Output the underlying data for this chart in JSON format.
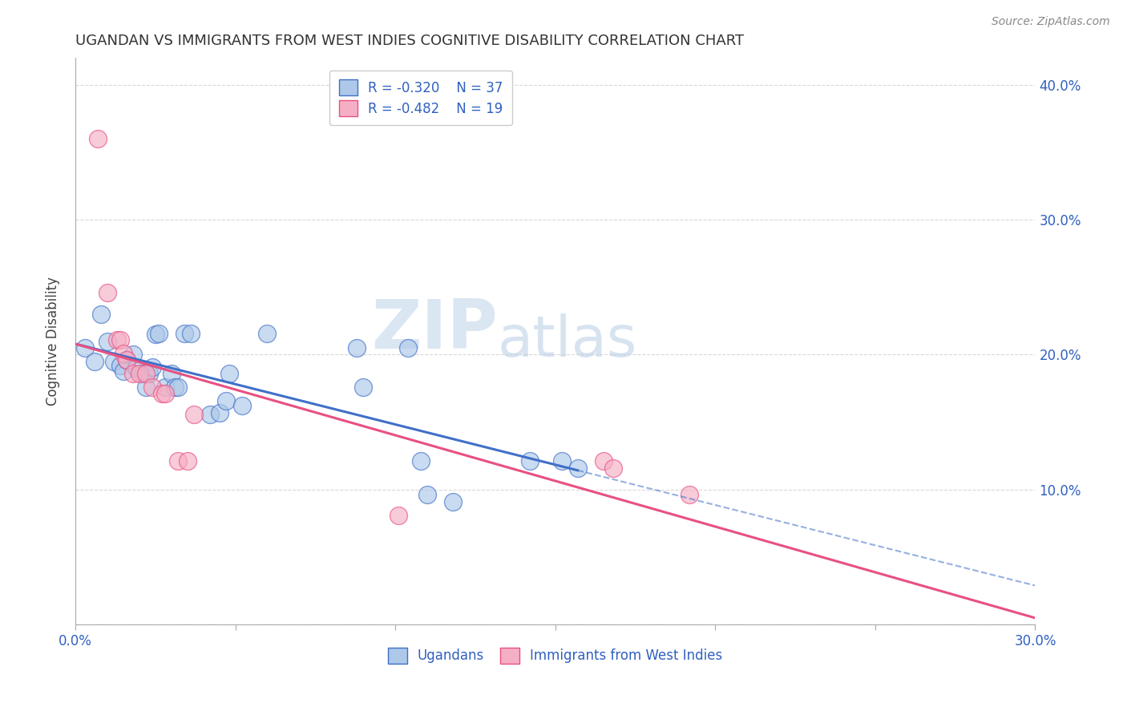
{
  "title": "UGANDAN VS IMMIGRANTS FROM WEST INDIES COGNITIVE DISABILITY CORRELATION CHART",
  "source": "Source: ZipAtlas.com",
  "ylabel": "Cognitive Disability",
  "xlim": [
    0.0,
    0.3
  ],
  "ylim": [
    0.0,
    0.42
  ],
  "x_ticks": [
    0.0,
    0.05,
    0.1,
    0.15,
    0.2,
    0.25,
    0.3
  ],
  "y_ticks_left": [
    0.0,
    0.1,
    0.2,
    0.3,
    0.4
  ],
  "y_ticks_right": [
    0.1,
    0.2,
    0.3,
    0.4
  ],
  "legend_r_blue": "R = -0.320",
  "legend_n_blue": "N = 37",
  "legend_r_pink": "R = -0.482",
  "legend_n_pink": "N = 19",
  "blue_color": "#adc8e8",
  "pink_color": "#f5afc5",
  "blue_line_color": "#4070c8",
  "pink_line_color": "#e85080",
  "blue_scatter": [
    [
      0.003,
      0.205
    ],
    [
      0.006,
      0.195
    ],
    [
      0.008,
      0.23
    ],
    [
      0.01,
      0.21
    ],
    [
      0.012,
      0.195
    ],
    [
      0.014,
      0.192
    ],
    [
      0.015,
      0.188
    ],
    [
      0.016,
      0.196
    ],
    [
      0.018,
      0.2
    ],
    [
      0.019,
      0.19
    ],
    [
      0.021,
      0.186
    ],
    [
      0.022,
      0.176
    ],
    [
      0.023,
      0.186
    ],
    [
      0.024,
      0.191
    ],
    [
      0.025,
      0.215
    ],
    [
      0.026,
      0.216
    ],
    [
      0.028,
      0.176
    ],
    [
      0.03,
      0.186
    ],
    [
      0.031,
      0.176
    ],
    [
      0.032,
      0.176
    ],
    [
      0.034,
      0.216
    ],
    [
      0.036,
      0.216
    ],
    [
      0.042,
      0.156
    ],
    [
      0.045,
      0.157
    ],
    [
      0.047,
      0.166
    ],
    [
      0.048,
      0.186
    ],
    [
      0.052,
      0.162
    ],
    [
      0.06,
      0.216
    ],
    [
      0.088,
      0.205
    ],
    [
      0.09,
      0.176
    ],
    [
      0.104,
      0.205
    ],
    [
      0.108,
      0.121
    ],
    [
      0.11,
      0.096
    ],
    [
      0.118,
      0.091
    ],
    [
      0.142,
      0.121
    ],
    [
      0.152,
      0.121
    ],
    [
      0.157,
      0.116
    ]
  ],
  "pink_scatter": [
    [
      0.007,
      0.36
    ],
    [
      0.01,
      0.246
    ],
    [
      0.013,
      0.211
    ],
    [
      0.014,
      0.211
    ],
    [
      0.015,
      0.201
    ],
    [
      0.016,
      0.196
    ],
    [
      0.018,
      0.186
    ],
    [
      0.02,
      0.186
    ],
    [
      0.022,
      0.186
    ],
    [
      0.024,
      0.176
    ],
    [
      0.027,
      0.171
    ],
    [
      0.028,
      0.171
    ],
    [
      0.032,
      0.121
    ],
    [
      0.035,
      0.121
    ],
    [
      0.037,
      0.156
    ],
    [
      0.101,
      0.081
    ],
    [
      0.165,
      0.121
    ],
    [
      0.168,
      0.116
    ],
    [
      0.192,
      0.096
    ]
  ],
  "watermark_zip": "ZIP",
  "watermark_atlas": "atlas",
  "background_color": "#ffffff",
  "grid_color": "#d8d8d8"
}
